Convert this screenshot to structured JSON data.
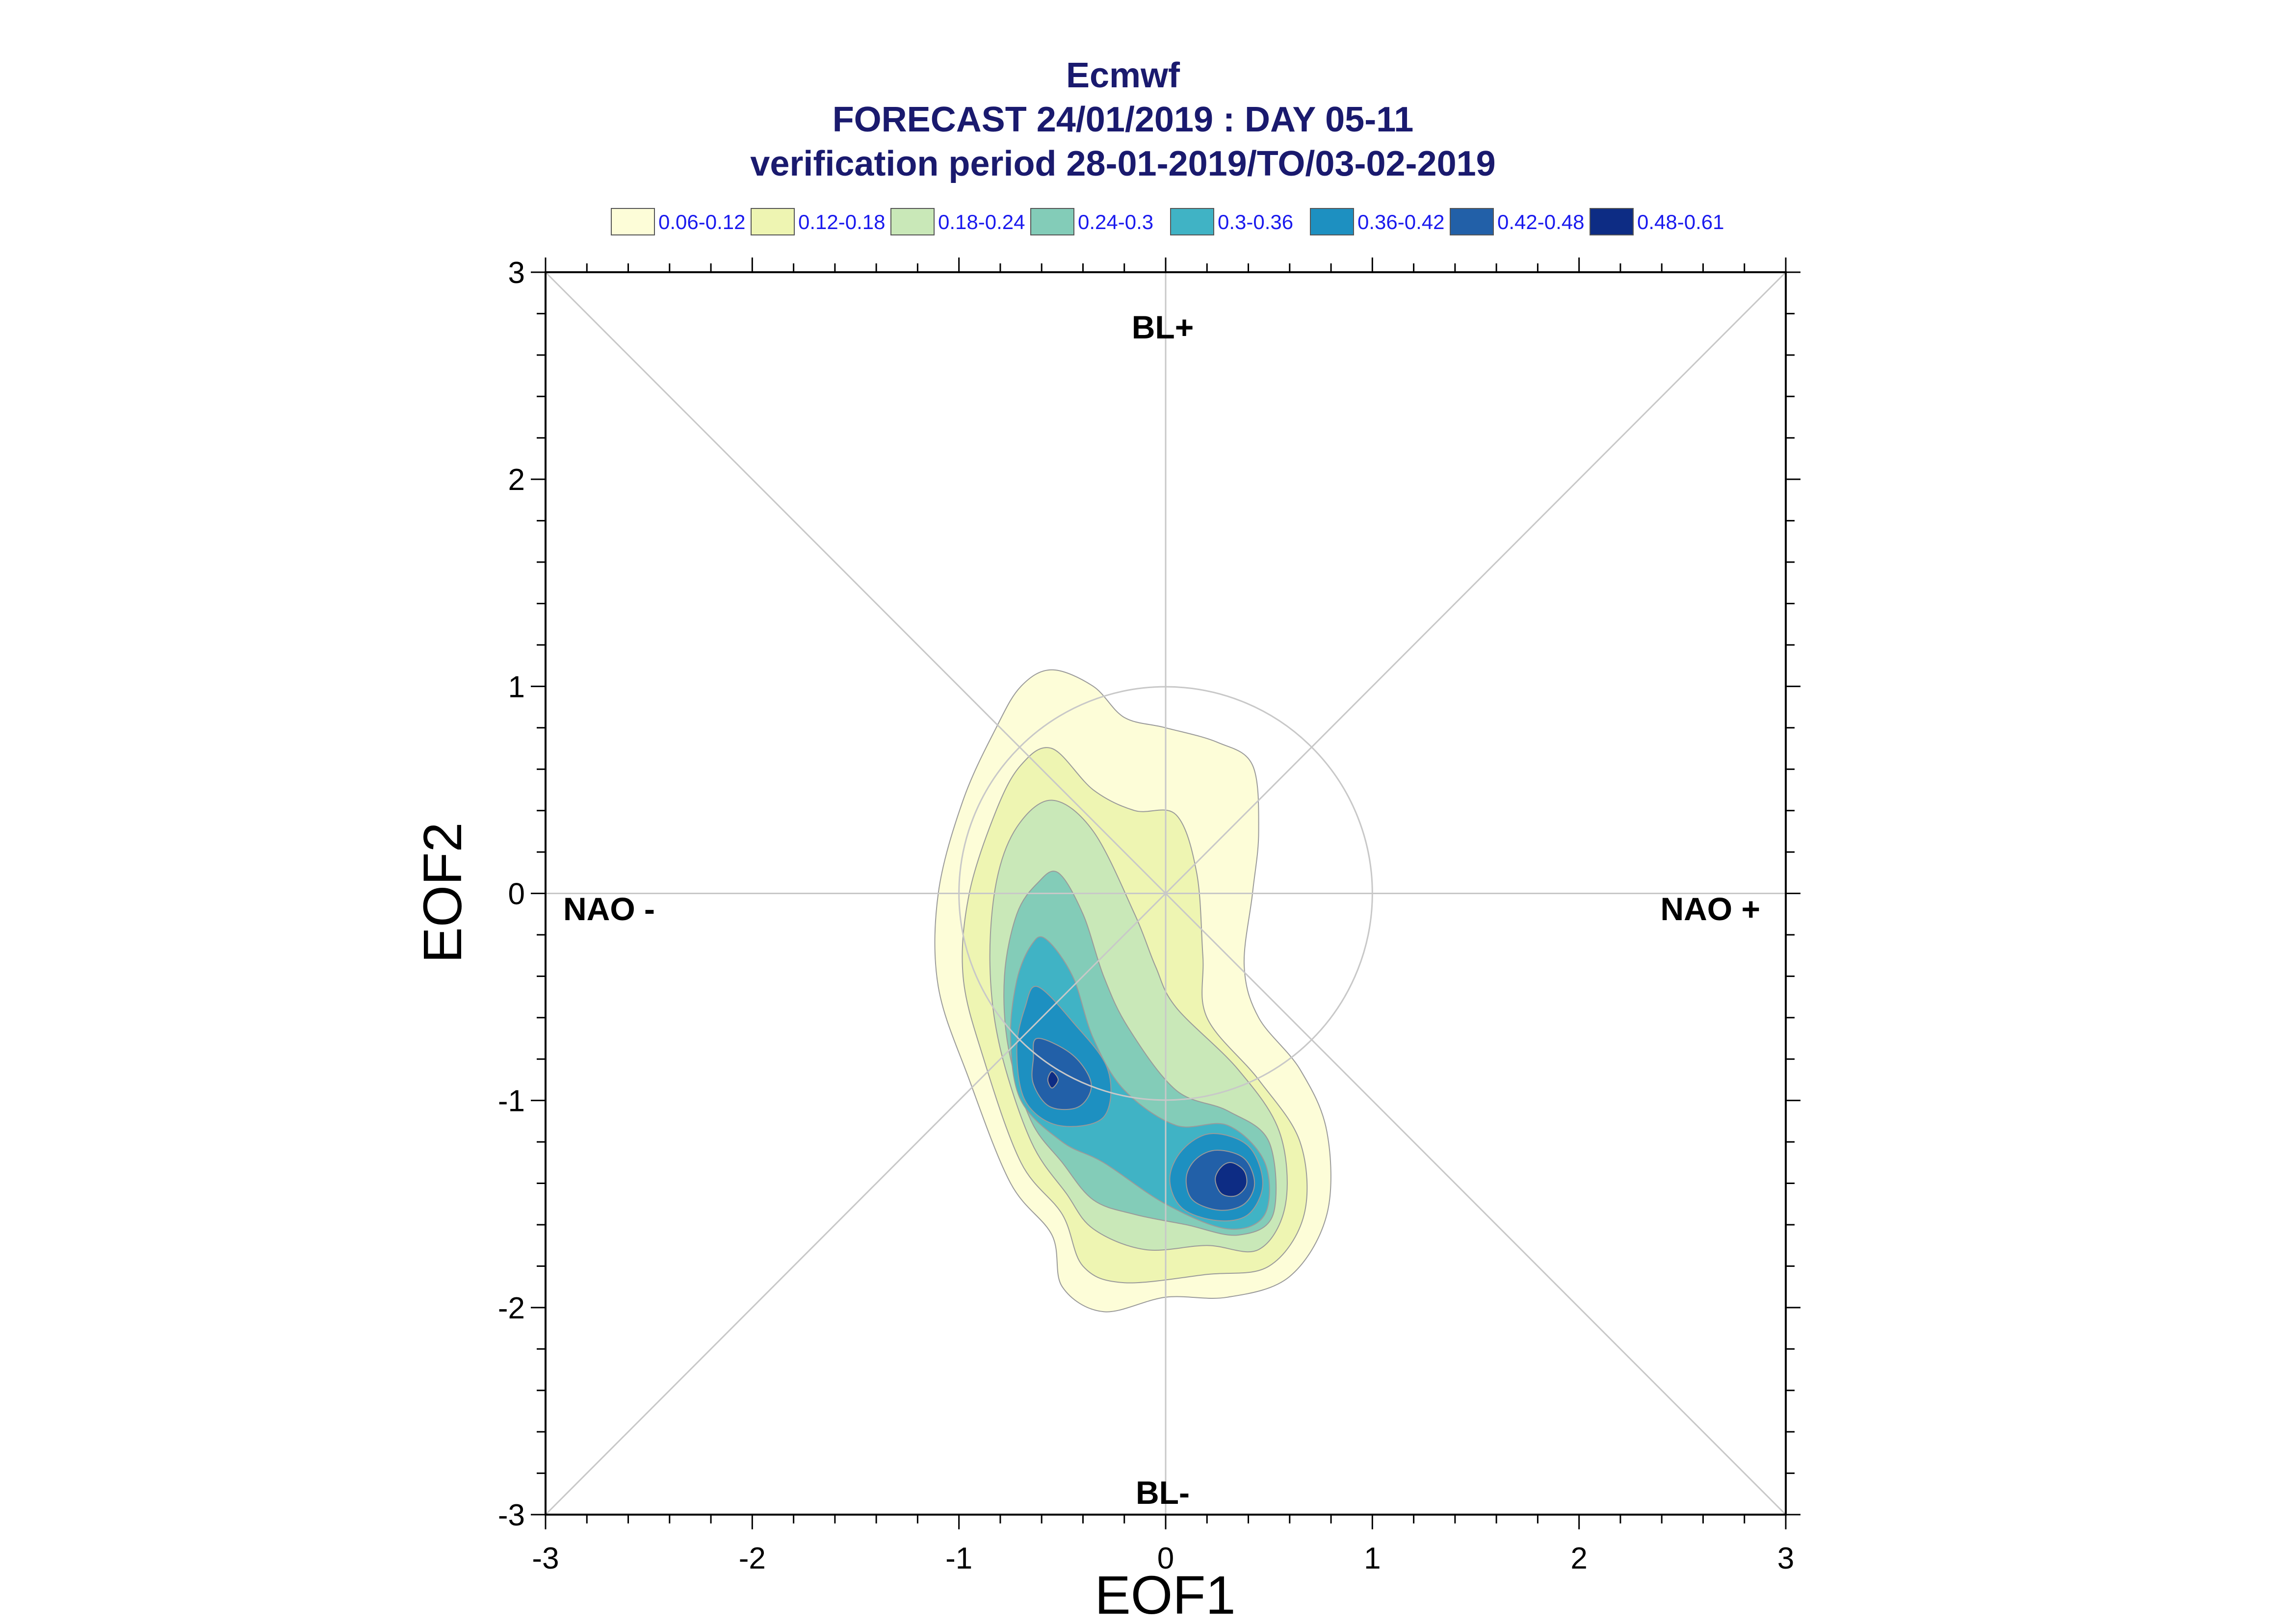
{
  "chart_data": {
    "type": "contour",
    "title": "Ecmwf",
    "subtitle_lines": [
      "FORECAST 24/01/2019 : DAY 05-11",
      "verification period 28-01-2019/TO/03-02-2019"
    ],
    "xlabel": "EOF1",
    "ylabel": "EOF2",
    "xlim": [
      -3,
      3
    ],
    "ylim": [
      -3,
      3
    ],
    "x_ticks": [
      "-3",
      "-2",
      "-1",
      "0",
      "1",
      "2",
      "3"
    ],
    "y_ticks": [
      "-3",
      "-2",
      "-1",
      "0",
      "1",
      "2",
      "3"
    ],
    "region_labels": {
      "top": "BL+",
      "bottom": "BL-",
      "left": "NAO -",
      "right": "NAO +"
    },
    "unit_circle_radius": 1,
    "legend": [
      {
        "label": "0.06-0.12",
        "color": "#fdfdd8"
      },
      {
        "label": "0.12-0.18",
        "color": "#eef5b2"
      },
      {
        "label": "0.18-0.24",
        "color": "#c9e8b8"
      },
      {
        "label": "0.24-0.3",
        "color": "#83ccb8"
      },
      {
        "label": "0.3-0.36",
        "color": "#40b3c5"
      },
      {
        "label": "0.36-0.42",
        "color": "#1d90c1"
      },
      {
        "label": "0.42-0.48",
        "color": "#2260a8"
      },
      {
        "label": "0.48-0.61",
        "color": "#0d2c84"
      }
    ],
    "density_peaks": [
      {
        "x": -0.55,
        "y": -0.9,
        "value": 0.5
      },
      {
        "x": 0.32,
        "y": -1.38,
        "value": 0.52
      }
    ],
    "contours": [
      {
        "level": "0.06-0.12",
        "color": "#fdfdd8",
        "points": [
          [
            -0.55,
            1.08
          ],
          [
            -0.35,
            1.0
          ],
          [
            -0.2,
            0.85
          ],
          [
            0.0,
            0.8
          ],
          [
            0.25,
            0.73
          ],
          [
            0.42,
            0.62
          ],
          [
            0.45,
            0.3
          ],
          [
            0.42,
            0.0
          ],
          [
            0.38,
            -0.35
          ],
          [
            0.45,
            -0.6
          ],
          [
            0.65,
            -0.85
          ],
          [
            0.78,
            -1.15
          ],
          [
            0.78,
            -1.55
          ],
          [
            0.6,
            -1.85
          ],
          [
            0.3,
            -1.95
          ],
          [
            0.0,
            -1.95
          ],
          [
            -0.3,
            -2.02
          ],
          [
            -0.5,
            -1.9
          ],
          [
            -0.55,
            -1.65
          ],
          [
            -0.75,
            -1.4
          ],
          [
            -0.95,
            -0.9
          ],
          [
            -1.1,
            -0.45
          ],
          [
            -1.1,
            0.0
          ],
          [
            -0.98,
            0.45
          ],
          [
            -0.82,
            0.8
          ],
          [
            -0.7,
            1.0
          ]
        ]
      },
      {
        "level": "0.12-0.18",
        "color": "#eef5b2",
        "points": [
          [
            -0.55,
            0.7
          ],
          [
            -0.35,
            0.5
          ],
          [
            -0.15,
            0.4
          ],
          [
            0.05,
            0.38
          ],
          [
            0.15,
            0.1
          ],
          [
            0.18,
            -0.3
          ],
          [
            0.2,
            -0.6
          ],
          [
            0.45,
            -0.9
          ],
          [
            0.65,
            -1.2
          ],
          [
            0.67,
            -1.55
          ],
          [
            0.5,
            -1.8
          ],
          [
            0.2,
            -1.84
          ],
          [
            -0.2,
            -1.88
          ],
          [
            -0.4,
            -1.8
          ],
          [
            -0.5,
            -1.55
          ],
          [
            -0.7,
            -1.3
          ],
          [
            -0.88,
            -0.8
          ],
          [
            -0.98,
            -0.4
          ],
          [
            -0.95,
            0.0
          ],
          [
            -0.82,
            0.4
          ],
          [
            -0.7,
            0.62
          ]
        ]
      },
      {
        "level": "0.18-0.24",
        "color": "#c9e8b8",
        "points": [
          [
            -0.55,
            0.45
          ],
          [
            -0.35,
            0.3
          ],
          [
            -0.15,
            -0.1
          ],
          [
            -0.05,
            -0.35
          ],
          [
            0.05,
            -0.55
          ],
          [
            0.35,
            -0.85
          ],
          [
            0.55,
            -1.15
          ],
          [
            0.58,
            -1.5
          ],
          [
            0.45,
            -1.72
          ],
          [
            0.2,
            -1.7
          ],
          [
            -0.1,
            -1.72
          ],
          [
            -0.35,
            -1.62
          ],
          [
            -0.48,
            -1.45
          ],
          [
            -0.65,
            -1.2
          ],
          [
            -0.8,
            -0.75
          ],
          [
            -0.85,
            -0.35
          ],
          [
            -0.82,
            0.05
          ],
          [
            -0.72,
            0.32
          ]
        ]
      },
      {
        "level": "0.24-0.3",
        "color": "#83ccb8",
        "points": [
          [
            -0.52,
            0.1
          ],
          [
            -0.4,
            -0.1
          ],
          [
            -0.3,
            -0.4
          ],
          [
            -0.18,
            -0.65
          ],
          [
            0.05,
            -0.95
          ],
          [
            0.3,
            -1.05
          ],
          [
            0.5,
            -1.2
          ],
          [
            0.52,
            -1.55
          ],
          [
            0.35,
            -1.65
          ],
          [
            0.1,
            -1.6
          ],
          [
            -0.15,
            -1.55
          ],
          [
            -0.35,
            -1.48
          ],
          [
            -0.5,
            -1.3
          ],
          [
            -0.65,
            -1.1
          ],
          [
            -0.76,
            -0.75
          ],
          [
            -0.78,
            -0.4
          ],
          [
            -0.72,
            -0.1
          ],
          [
            -0.62,
            0.05
          ]
        ]
      },
      {
        "level": "0.3-0.36",
        "color": "#40b3c5",
        "points": [
          [
            -0.58,
            -0.22
          ],
          [
            -0.45,
            -0.4
          ],
          [
            -0.35,
            -0.7
          ],
          [
            -0.2,
            -0.95
          ],
          [
            0.05,
            -1.12
          ],
          [
            0.3,
            -1.12
          ],
          [
            0.48,
            -1.3
          ],
          [
            0.48,
            -1.55
          ],
          [
            0.3,
            -1.62
          ],
          [
            0.0,
            -1.5
          ],
          [
            -0.3,
            -1.3
          ],
          [
            -0.5,
            -1.2
          ],
          [
            -0.7,
            -1.0
          ],
          [
            -0.75,
            -0.7
          ],
          [
            -0.72,
            -0.42
          ],
          [
            -0.65,
            -0.25
          ]
        ]
      },
      {
        "level": "0.36-0.42",
        "color": "#1d90c1",
        "points": [
          [
            -0.62,
            -0.45
          ],
          [
            -0.45,
            -0.62
          ],
          [
            -0.28,
            -0.85
          ],
          [
            -0.3,
            -1.08
          ],
          [
            -0.52,
            -1.12
          ],
          [
            -0.68,
            -1.0
          ],
          [
            -0.72,
            -0.75
          ],
          [
            -0.68,
            -0.55
          ]
        ]
      },
      {
        "level": "0.36-0.42",
        "color": "#1d90c1",
        "points": [
          [
            0.22,
            -1.16
          ],
          [
            0.4,
            -1.22
          ],
          [
            0.47,
            -1.4
          ],
          [
            0.4,
            -1.55
          ],
          [
            0.25,
            -1.58
          ],
          [
            0.08,
            -1.52
          ],
          [
            0.02,
            -1.38
          ],
          [
            0.08,
            -1.24
          ]
        ]
      },
      {
        "level": "0.42-0.48",
        "color": "#2260a8",
        "points": [
          [
            -0.62,
            -0.7
          ],
          [
            -0.45,
            -0.78
          ],
          [
            -0.36,
            -0.92
          ],
          [
            -0.42,
            -1.03
          ],
          [
            -0.56,
            -1.03
          ],
          [
            -0.64,
            -0.92
          ],
          [
            -0.64,
            -0.8
          ]
        ]
      },
      {
        "level": "0.42-0.48",
        "color": "#2260a8",
        "points": [
          [
            0.25,
            -1.24
          ],
          [
            0.38,
            -1.28
          ],
          [
            0.43,
            -1.4
          ],
          [
            0.38,
            -1.5
          ],
          [
            0.26,
            -1.53
          ],
          [
            0.13,
            -1.48
          ],
          [
            0.1,
            -1.37
          ],
          [
            0.15,
            -1.28
          ]
        ]
      },
      {
        "level": "0.48-0.61",
        "color": "#0d2c84",
        "points": [
          [
            -0.55,
            -0.86
          ],
          [
            -0.52,
            -0.9
          ],
          [
            -0.55,
            -0.94
          ],
          [
            -0.57,
            -0.9
          ]
        ]
      },
      {
        "level": "0.48-0.61",
        "color": "#0d2c84",
        "points": [
          [
            0.32,
            -1.3
          ],
          [
            0.38,
            -1.34
          ],
          [
            0.39,
            -1.41
          ],
          [
            0.34,
            -1.46
          ],
          [
            0.27,
            -1.45
          ],
          [
            0.24,
            -1.38
          ],
          [
            0.27,
            -1.32
          ]
        ]
      }
    ]
  }
}
